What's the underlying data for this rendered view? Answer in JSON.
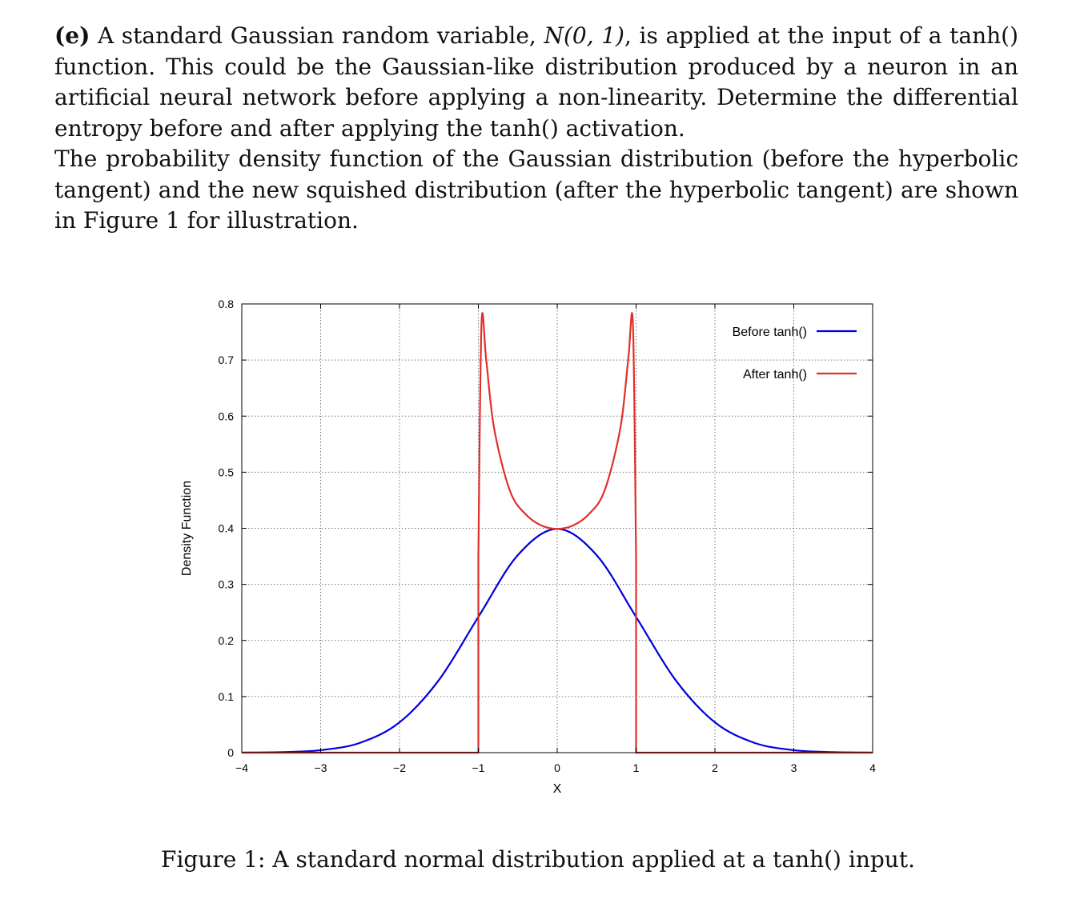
{
  "problem": {
    "label": "(e)",
    "para1_a": "A standard Gaussian random variable, ",
    "para1_math": "N(0, 1)",
    "para1_b": ", is applied at the input of a tanh() function. This could be the Gaussian-like distribution produced by a neuron in an artificial neural network before applying a non-linearity. Determine the differential entropy before and after applying the tanh() activation.",
    "para2": "The probability density function of the Gaussian distribution (before the hyperbolic tangent) and the new squished distribution (after the hyperbolic tangent) are shown in Figure 1 for illustration."
  },
  "chart_data": {
    "type": "line",
    "xlabel": "X",
    "ylabel": "Density Function",
    "xlim": [
      -4,
      4
    ],
    "ylim": [
      0,
      0.8
    ],
    "x_ticks": [
      -4,
      -3,
      -2,
      -1,
      0,
      1,
      2,
      3,
      4
    ],
    "x_tick_labels": [
      "−4",
      "−3",
      "−2",
      "−1",
      "0",
      "1",
      "2",
      "3",
      "4"
    ],
    "y_ticks": [
      0,
      0.1,
      0.2,
      0.3,
      0.4,
      0.5,
      0.6,
      0.7,
      0.8
    ],
    "y_tick_labels": [
      "0",
      "0.1",
      "0.2",
      "0.3",
      "0.4",
      "0.5",
      "0.6",
      "0.7",
      "0.8"
    ],
    "grid": true,
    "legend_position": "top-right",
    "series": [
      {
        "name": "Before tanh()",
        "color": "#0000dd",
        "x": [
          -4,
          -3.5,
          -3,
          -2.5,
          -2,
          -1.5,
          -1,
          -0.5,
          0,
          0.5,
          1,
          1.5,
          2,
          2.5,
          3,
          3.5,
          4
        ],
        "y": [
          0.0001,
          0.0009,
          0.0044,
          0.0175,
          0.054,
          0.1295,
          0.242,
          0.3521,
          0.3989,
          0.3521,
          0.242,
          0.1295,
          0.054,
          0.0175,
          0.0044,
          0.0009,
          0.0001
        ]
      },
      {
        "name": "After tanh()",
        "color": "#e0302a",
        "x": [
          -4,
          -1,
          -1,
          -0.96,
          -0.9,
          -0.8,
          -0.6,
          -0.4,
          -0.2,
          0,
          0.2,
          0.4,
          0.6,
          0.8,
          0.9,
          0.96,
          1,
          1,
          4
        ],
        "y": [
          0,
          0,
          0.35,
          0.765,
          0.7,
          0.578,
          0.467,
          0.425,
          0.405,
          0.399,
          0.405,
          0.425,
          0.467,
          0.578,
          0.7,
          0.765,
          0.35,
          0,
          0
        ]
      }
    ]
  },
  "caption": "Figure 1: A standard normal distribution applied at a tanh() input."
}
